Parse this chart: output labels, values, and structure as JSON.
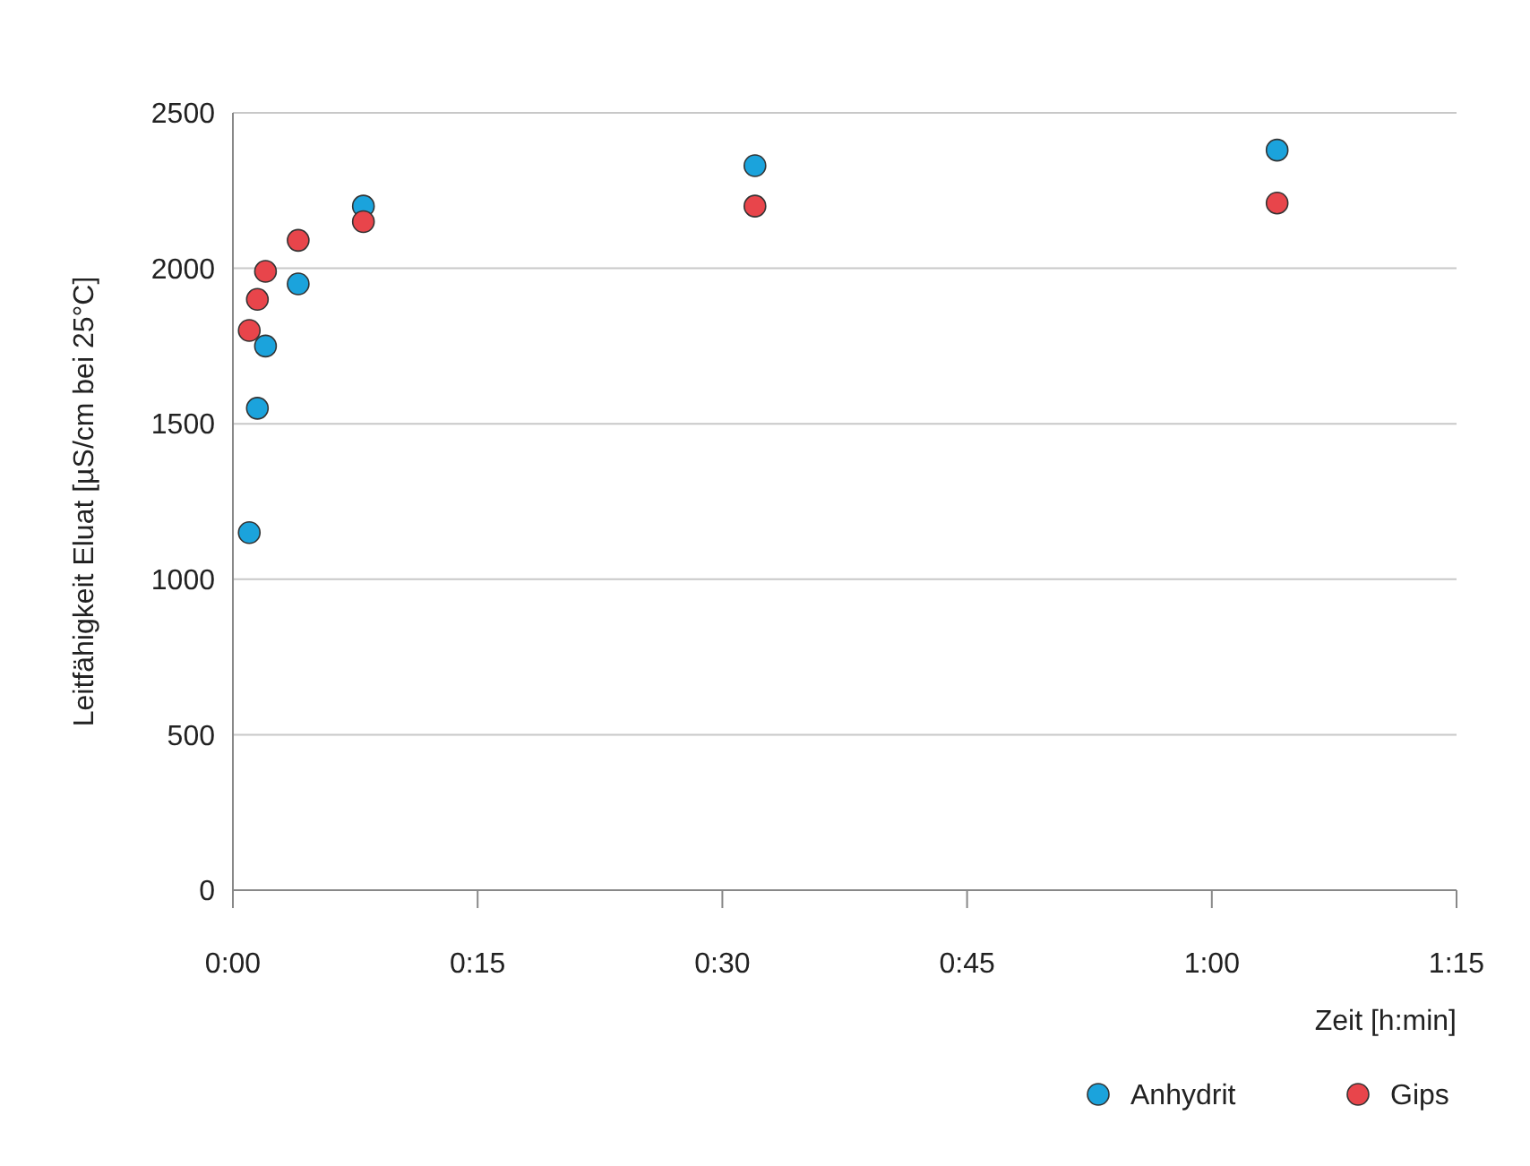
{
  "chart_data": {
    "type": "scatter",
    "xlabel": "Zeit [h:min]",
    "ylabel": "Leitfähigkeit Eluat [µS/cm bei 25°C]",
    "xlim": [
      0,
      1.25
    ],
    "xticks": [
      {
        "value": 0,
        "label": "0:00"
      },
      {
        "value": 0.25,
        "label": "0:15"
      },
      {
        "value": 0.5,
        "label": "0:30"
      },
      {
        "value": 0.75,
        "label": "0:45"
      },
      {
        "value": 1,
        "label": "1:00"
      },
      {
        "value": 1.25,
        "label": "1:15"
      }
    ],
    "ylim": [
      0,
      2500
    ],
    "yticks": [
      0,
      500,
      1000,
      1500,
      2000,
      2500
    ],
    "grid": "y",
    "legend": "bottom right",
    "marker": "circle",
    "series": [
      {
        "name": "Anhydrit",
        "color": "#1ba3dc",
        "x": [
          0.0167,
          0.025,
          0.0333,
          0.0667,
          0.1333,
          0.5333,
          1.0667
        ],
        "values": [
          1150,
          1550,
          1750,
          1950,
          2200,
          2330,
          2380
        ]
      },
      {
        "name": "Gips",
        "color": "#e8454b",
        "x": [
          0.0167,
          0.025,
          0.0333,
          0.0667,
          0.1333,
          0.5333,
          1.0667
        ],
        "values": [
          1800,
          1900,
          1990,
          2090,
          2150,
          2200,
          2210
        ]
      }
    ]
  }
}
